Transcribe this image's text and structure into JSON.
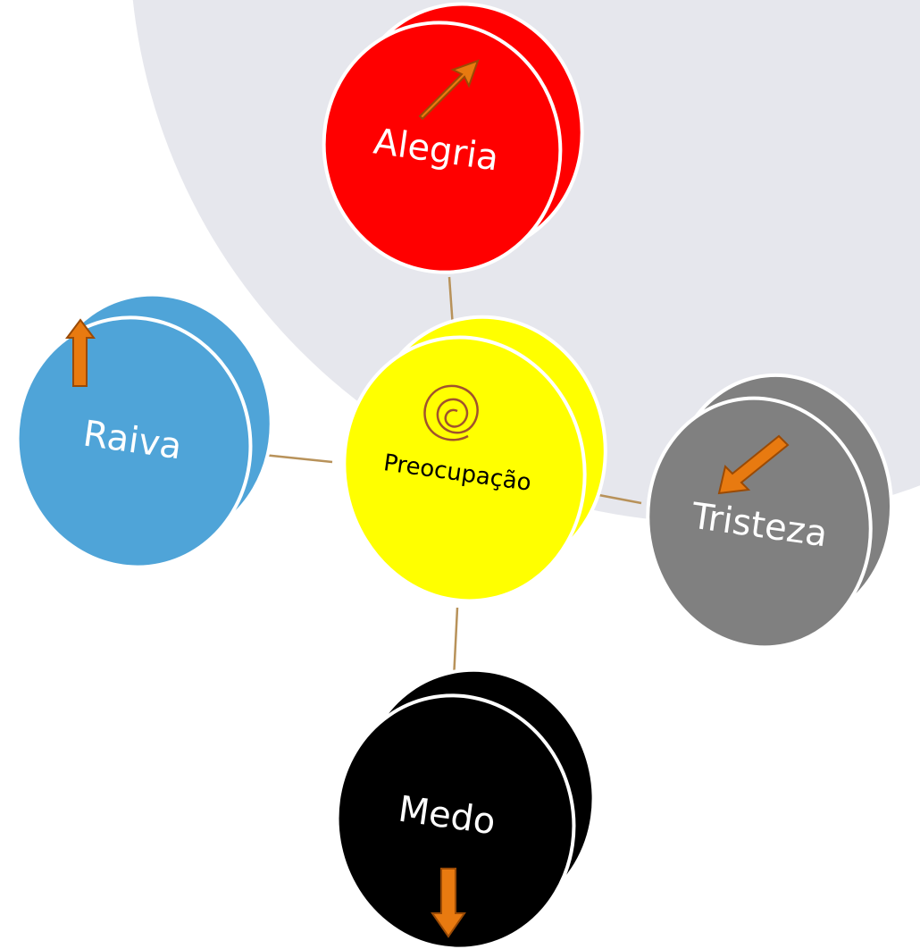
{
  "nodes": [
    {
      "label": "Alegria"
    },
    {
      "label": "Preocupação"
    },
    {
      "label": "Raiva"
    },
    {
      "label": "Tristeza"
    },
    {
      "label": "Medo"
    }
  ]
}
